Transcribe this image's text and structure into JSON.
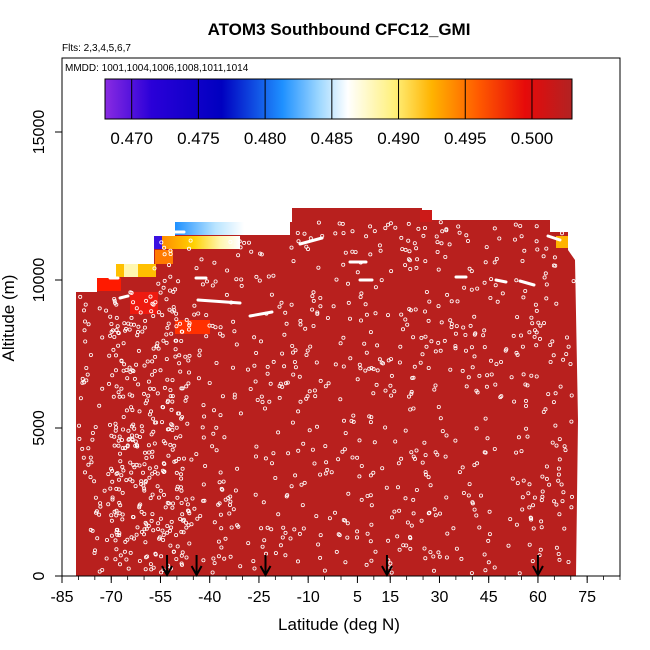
{
  "chart_data": {
    "type": "heatmap",
    "title": "ATOM3 Southbound CFC12_GMI",
    "flights_label": "Flts: 2,3,4,5,6,7",
    "dates_label": "MMDD: 1001,1004,1006,1008,1011,1014",
    "xlabel": "Latitude (deg N)",
    "ylabel": "Altitude (m)",
    "xlim": [
      -85,
      85
    ],
    "ylim": [
      0,
      17500
    ],
    "x_ticks": [
      -85,
      -70,
      -55,
      -40,
      -25,
      -10,
      5,
      15,
      30,
      45,
      60,
      75
    ],
    "y_ticks": [
      0,
      5000,
      10000,
      15000
    ],
    "colorbar": {
      "min": 0.468,
      "max": 0.503,
      "ticks": [
        0.47,
        0.475,
        0.48,
        0.485,
        0.49,
        0.495,
        0.5
      ],
      "tick_labels": [
        "0.470",
        "0.475",
        "0.480",
        "0.485",
        "0.490",
        "0.495",
        "0.500"
      ]
    },
    "background_value": 0.5015,
    "marker_latitudes": [
      -53,
      -44,
      -23,
      14,
      60
    ],
    "notes_on_color": {
      "low": "#7a1aff",
      "high": "#b22222"
    }
  },
  "colors": {
    "field": "#b8201e",
    "colorbar_stops": [
      "#8a2be2",
      "#0000c8",
      "#1e90ff",
      "#aee0ff",
      "#ffffff",
      "#fff07a",
      "#ffb000",
      "#ff6a00",
      "#ee1100",
      "#b22222"
    ]
  }
}
